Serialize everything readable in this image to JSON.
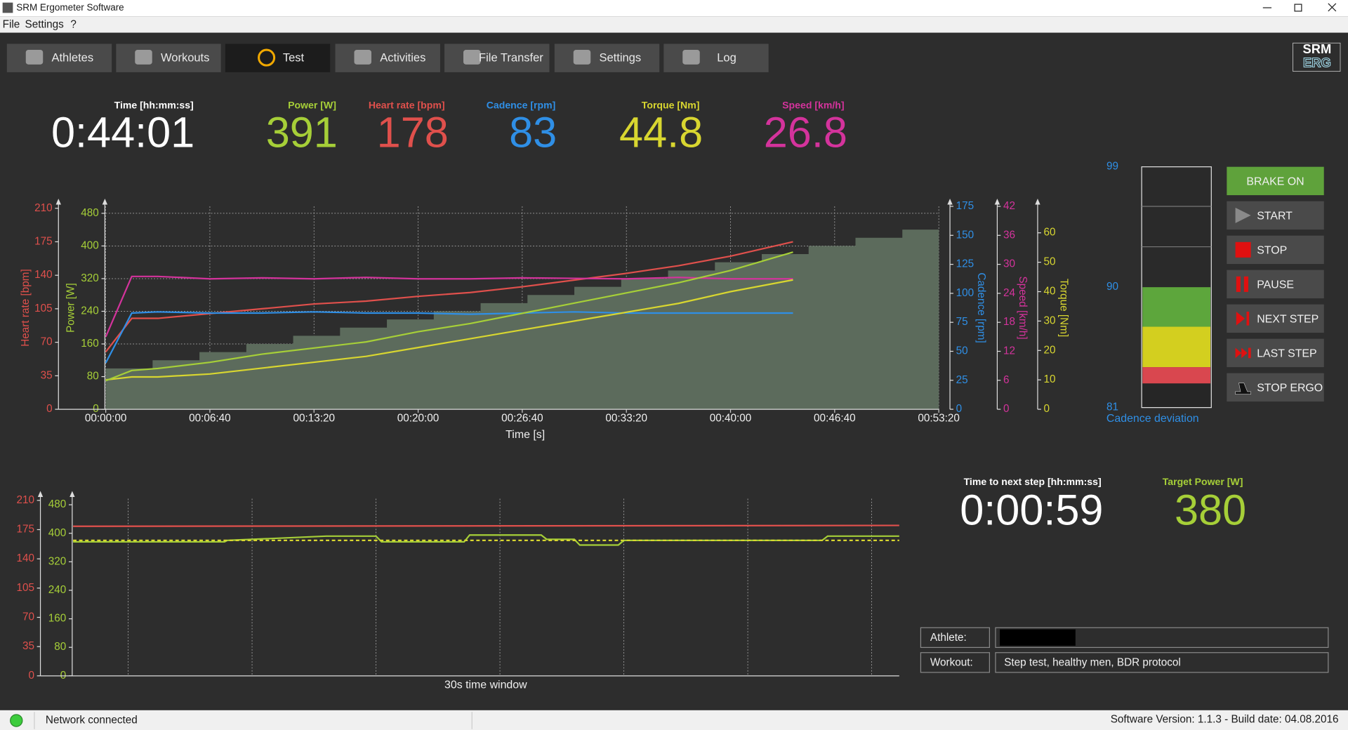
{
  "window": {
    "title": "SRM Ergometer Software"
  },
  "menu": [
    "File",
    "Settings",
    "?"
  ],
  "tabs": [
    "Athletes",
    "Workouts",
    "Test",
    "Activities",
    "File Transfer",
    "Settings",
    "Log"
  ],
  "active_tab": 2,
  "logo": [
    "SRM",
    "ERG"
  ],
  "metrics": [
    {
      "label": "Time [hh:mm:ss]",
      "value": "0:44:01",
      "color": "#ffffff"
    },
    {
      "label": "Power [W]",
      "value": 391,
      "color": "#a6cf38"
    },
    {
      "label": "Heart rate [bpm]",
      "value": 178,
      "color": "#e0504c"
    },
    {
      "label": "Cadence [rpm]",
      "value": 83,
      "color": "#2f8fe6"
    },
    {
      "label": "Torque [Nm]",
      "value": 44.8,
      "color": "#d8d630"
    },
    {
      "label": "Speed [km/h]",
      "value": 26.8,
      "color": "#d4339c"
    }
  ],
  "main_chart": {
    "type": "line",
    "xlabel": "Time [s]",
    "xlim": [
      0,
      3200
    ],
    "xticks": [
      {
        "value": 0,
        "label": "00:00:00"
      },
      {
        "value": 400,
        "label": "00:06:40"
      },
      {
        "value": 800,
        "label": "00:13:20"
      },
      {
        "value": 1200,
        "label": "00:20:00"
      },
      {
        "value": 1600,
        "label": "00:26:40"
      },
      {
        "value": 2000,
        "label": "00:33:20"
      },
      {
        "value": 2400,
        "label": "00:40:00"
      },
      {
        "value": 2800,
        "label": "00:46:40"
      },
      {
        "value": 3200,
        "label": "00:53:20"
      }
    ],
    "axes": [
      {
        "label": "Heart rate [bpm]",
        "ylim": [
          0,
          212
        ],
        "yticks": [
          0,
          35,
          70,
          105,
          140,
          175,
          210
        ],
        "color": "#e0504c"
      },
      {
        "label": "Power [W]",
        "ylim": [
          0,
          497
        ],
        "yticks": [
          0,
          80,
          160,
          240,
          320,
          400,
          480
        ],
        "color": "#a6cf38",
        "grid": true
      },
      {
        "label": "Cadence [rpm]",
        "ylim": [
          0,
          175
        ],
        "yticks": [
          0,
          25,
          50,
          75,
          100,
          125,
          150,
          175
        ],
        "color": "#2f8fe6"
      },
      {
        "label": "Speed [km/h]",
        "ylim": [
          0,
          42
        ],
        "yticks": [
          0,
          6,
          12,
          18,
          24,
          30,
          36,
          42
        ],
        "color": "#d4339c"
      },
      {
        "label": "Torque [Nm]",
        "ylim": [
          0,
          69
        ],
        "yticks": [
          0,
          10,
          20,
          30,
          40,
          50,
          60
        ],
        "color": "#d8d630"
      }
    ],
    "target": {
      "axis": 1,
      "color": "#5c6b5c",
      "x": [
        0,
        180,
        360,
        540,
        720,
        900,
        1080,
        1260,
        1440,
        1620,
        1800,
        1980,
        2160,
        2340,
        2520,
        2700,
        2880,
        3060
      ],
      "values": [
        100,
        120,
        140,
        160,
        180,
        200,
        220,
        240,
        260,
        280,
        300,
        320,
        340,
        360,
        380,
        400,
        420,
        440
      ]
    },
    "x": [
      0,
      100,
      200,
      400,
      600,
      800,
      1000,
      1200,
      1400,
      1600,
      1800,
      2000,
      2200,
      2400,
      2640
    ],
    "series": [
      {
        "axis": 0,
        "color": "#e0504c",
        "values": [
          60,
          95,
          95,
          100,
          105,
          110,
          113,
          118,
          122,
          128,
          135,
          142,
          150,
          160,
          175
        ]
      },
      {
        "axis": 2,
        "color": "#2f8fe6",
        "values": [
          40,
          83,
          84,
          83,
          83,
          84,
          83,
          83,
          82,
          83,
          84,
          83,
          83,
          83,
          83
        ]
      },
      {
        "axis": 3,
        "color": "#d4339c",
        "values": [
          15,
          27.5,
          27.5,
          27,
          27.2,
          27,
          27.3,
          27,
          27,
          27.2,
          27.1,
          27,
          27.3,
          27,
          27
        ]
      },
      {
        "axis": 4,
        "color": "#d8d630",
        "values": [
          10,
          11,
          11,
          12,
          14,
          16,
          18,
          21,
          24,
          27,
          30,
          33,
          36,
          40,
          44
        ]
      },
      {
        "axis": 1,
        "color": "#a6cf38",
        "values": [
          70,
          95,
          100,
          115,
          135,
          150,
          165,
          190,
          210,
          235,
          260,
          285,
          310,
          340,
          385
        ]
      }
    ]
  },
  "cadence_gauge": {
    "ylim": [
      81,
      99
    ],
    "yticks": [
      81,
      90,
      99
    ],
    "label": "Cadence deviation",
    "color": "#2f8fe6"
  },
  "buttons": [
    "BRAKE ON",
    "START",
    "STOP",
    "PAUSE",
    "NEXT STEP",
    "LAST STEP",
    "STOP ERGO"
  ],
  "window_chart": {
    "type": "line",
    "xlabel": "30s time window",
    "xlim": [
      0,
      30
    ],
    "xticks": [
      2,
      6.5,
      11,
      15.5,
      20,
      24.5,
      29
    ],
    "axes": [
      {
        "ylim": [
          0,
          212
        ],
        "yticks": [
          0,
          35,
          70,
          105,
          140,
          175,
          210
        ],
        "color": "#e0504c"
      },
      {
        "ylim": [
          0,
          497
        ],
        "yticks": [
          0,
          80,
          160,
          240,
          320,
          400,
          480
        ],
        "color": "#a6cf38"
      }
    ],
    "series": [
      {
        "axis": 0,
        "color": "#e0504c",
        "x": [
          0,
          30
        ],
        "values": [
          179,
          180
        ]
      },
      {
        "axis": 1,
        "color": "#a6cf38",
        "x": [
          0,
          5.5,
          5.6,
          9.2,
          11,
          11.2,
          14.2,
          14.4,
          17,
          17.2,
          18.2,
          18.4,
          19.8,
          20,
          27.2,
          27.4,
          30
        ],
        "values": [
          376,
          376,
          380,
          392,
          392,
          376,
          376,
          395,
          395,
          383,
          383,
          367,
          367,
          380,
          380,
          392,
          392
        ]
      },
      {
        "axis": 1,
        "color": "#d8d630",
        "dashed": true,
        "x": [
          0,
          30
        ],
        "values": [
          380,
          380
        ]
      }
    ]
  },
  "next_step": {
    "label": "Time to next step [hh:mm:ss]",
    "value": "0:00:59"
  },
  "target_power": {
    "label": "Target Power [W]",
    "value": 380,
    "color": "#a6cf38"
  },
  "info": [
    {
      "label": "Athlete:"
    },
    {
      "label": "Workout:",
      "value": "Step test, healthy men, BDR protocol"
    }
  ],
  "status": {
    "network": "Network connected",
    "version": "Software Version: 1.1.3 - Build date: 04.08.2016"
  }
}
